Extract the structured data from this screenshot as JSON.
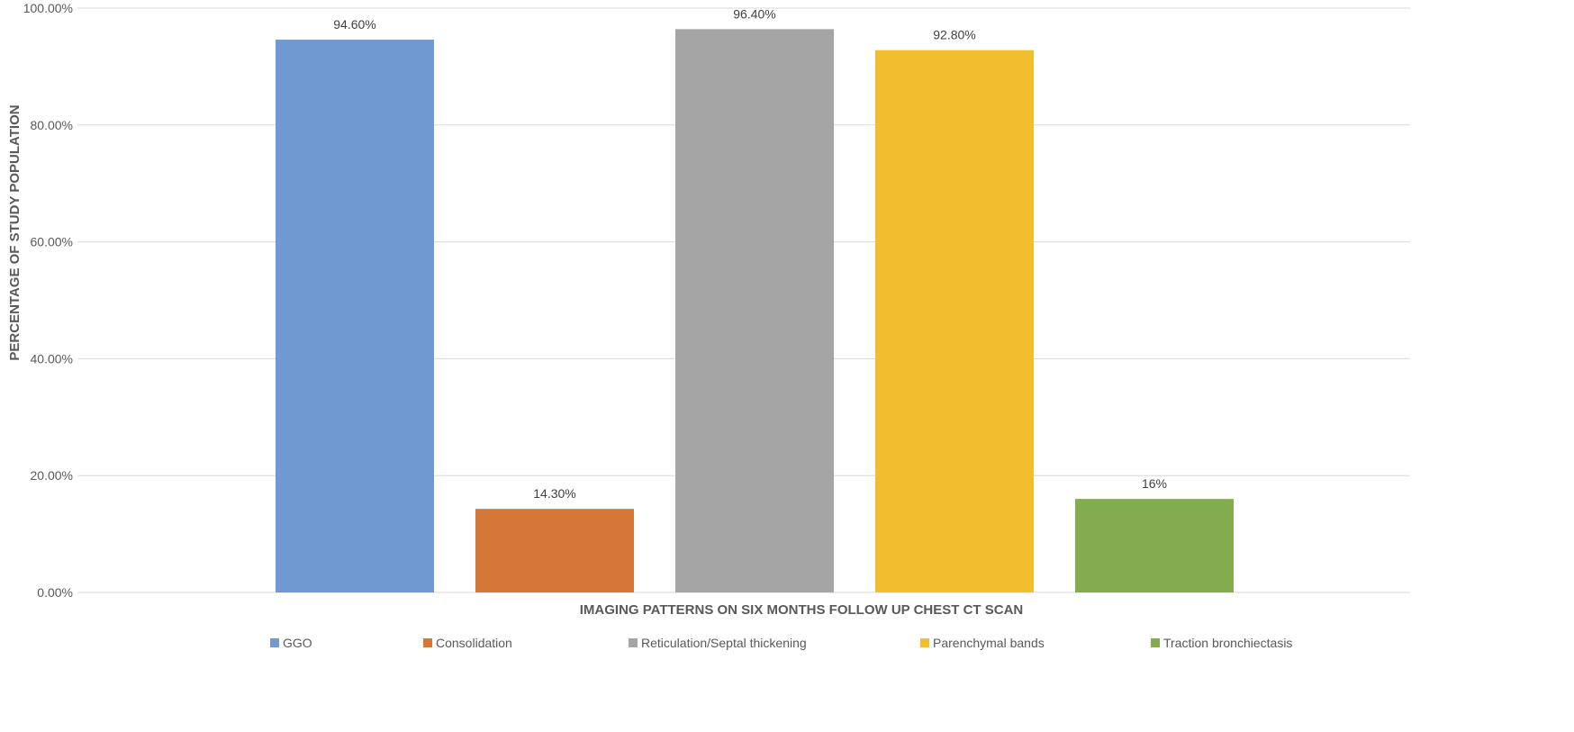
{
  "chart_data": {
    "type": "bar",
    "title": "",
    "xlabel": "IMAGING PATTERNS ON SIX MONTHS FOLLOW UP CHEST CT SCAN",
    "ylabel": "PERCENTAGE OF STUDY POPULATION",
    "ylim": [
      0,
      100
    ],
    "yticks": [
      "0.00%",
      "20.00%",
      "40.00%",
      "60.00%",
      "80.00%",
      "100.00%"
    ],
    "ytick_values": [
      0,
      20,
      40,
      60,
      80,
      100
    ],
    "grid": true,
    "legend_position": "bottom",
    "categories": [
      "GGO",
      "Consolidation",
      "Reticulation/Septal thickening",
      "Parenchymal bands",
      "Traction bronchiectasis"
    ],
    "values": [
      94.6,
      14.3,
      96.4,
      92.8,
      16
    ],
    "data_labels": [
      "94.60%",
      "14.30%",
      "96.40%",
      "92.80%",
      "16%"
    ],
    "colors": [
      "#7099d1",
      "#d57837",
      "#a5a5a5",
      "#f0be2e",
      "#83ab50"
    ]
  }
}
